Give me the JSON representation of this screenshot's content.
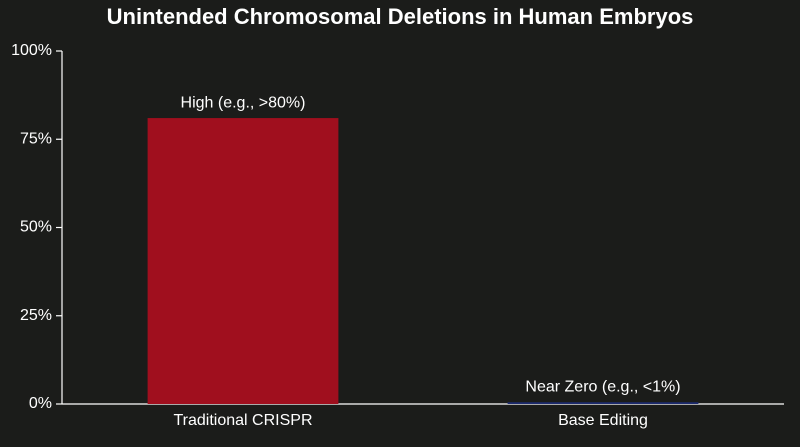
{
  "chart_data": {
    "type": "bar",
    "title": "Unintended Chromosomal Deletions in Human Embryos",
    "categories": [
      "Traditional CRISPR",
      "Base Editing"
    ],
    "values": [
      81,
      0.5
    ],
    "value_labels": [
      "High (e.g., >80%)",
      "Near Zero (e.g., <1%)"
    ],
    "colors": [
      "#a00f1e",
      "#1c2a6e"
    ],
    "ylim": [
      0,
      100
    ],
    "yticks": [
      {
        "value": 0,
        "label": "0%"
      },
      {
        "value": 25,
        "label": "25%"
      },
      {
        "value": 50,
        "label": "50%"
      },
      {
        "value": 75,
        "label": "75%"
      },
      {
        "value": 100,
        "label": "100%"
      }
    ],
    "grid": false
  }
}
